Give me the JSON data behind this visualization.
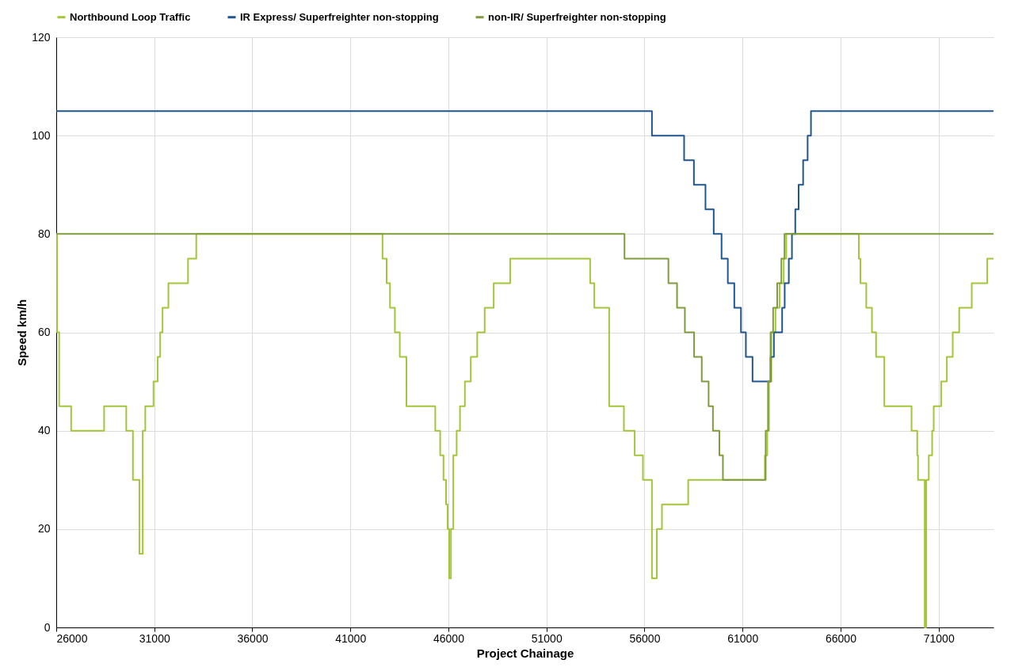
{
  "chart_data": {
    "type": "step",
    "xlabel": "Project Chainage",
    "ylabel": "Speed km/h",
    "xlim": [
      26000,
      73800
    ],
    "ylim": [
      0,
      120
    ],
    "xticks": [
      26000,
      31000,
      36000,
      41000,
      46000,
      51000,
      56000,
      61000,
      66000,
      71000
    ],
    "yticks": [
      0,
      20,
      40,
      60,
      80,
      100,
      120
    ],
    "grid": true,
    "legend": "top",
    "line_style": "solid",
    "marker": "none",
    "series": [
      {
        "name": "Northbound Loop Traffic",
        "color": "#a3c639",
        "x": [
          26000,
          26040,
          26150,
          26760,
          28440,
          29570,
          29910,
          30240,
          30410,
          30540,
          30960,
          31170,
          31300,
          31420,
          31720,
          32720,
          33140,
          42640,
          42850,
          43020,
          43270,
          43520,
          43860,
          45330,
          45580,
          45750,
          45880,
          45960,
          46040,
          46130,
          46250,
          46420,
          46590,
          46840,
          47140,
          47470,
          47850,
          48310,
          49150,
          53230,
          53440,
          54200,
          54360,
          54950,
          55500,
          55920,
          56380,
          56470,
          56630,
          56890,
          58230,
          62140,
          62260,
          62350,
          62470,
          62680,
          62890,
          63100,
          63230,
          66930,
          67010,
          67310,
          67600,
          67810,
          68230,
          69620,
          69910,
          69950,
          70290,
          70370,
          70500,
          70670,
          70750,
          71130,
          71420,
          71720,
          72050,
          72690,
          73480,
          73800
        ],
        "values": [
          80,
          60,
          45,
          40,
          45,
          40,
          30,
          15,
          40,
          45,
          50,
          55,
          60,
          65,
          70,
          75,
          80,
          75,
          70,
          65,
          60,
          55,
          45,
          40,
          35,
          30,
          25,
          20,
          10,
          20,
          35,
          40,
          45,
          50,
          55,
          60,
          65,
          70,
          75,
          70,
          65,
          45,
          45,
          40,
          35,
          30,
          10,
          10,
          20,
          25,
          30,
          35,
          40,
          50,
          60,
          65,
          70,
          75,
          80,
          75,
          70,
          65,
          60,
          55,
          45,
          40,
          35,
          30,
          0,
          30,
          35,
          40,
          45,
          50,
          55,
          60,
          65,
          70,
          75,
          75
        ]
      },
      {
        "name": "IR Express/ Superfreighter non-stopping",
        "color": "#1f5591",
        "x": [
          26000,
          56380,
          58020,
          58520,
          59110,
          59530,
          59930,
          60250,
          60580,
          60920,
          61170,
          61510,
          62430,
          62600,
          63020,
          63150,
          63360,
          63520,
          63690,
          63860,
          64090,
          64320,
          64490,
          73800
        ],
        "values": [
          105,
          100,
          95,
          90,
          85,
          80,
          75,
          70,
          65,
          60,
          55,
          50,
          55,
          60,
          65,
          70,
          75,
          80,
          85,
          90,
          95,
          100,
          105,
          105
        ]
      },
      {
        "name": "non-IR/ Superfreighter non-stopping",
        "color": "#7f9c3c",
        "x": [
          26000,
          54980,
          57220,
          57660,
          58060,
          58530,
          58920,
          59270,
          59490,
          59820,
          60000,
          62180,
          62300,
          62430,
          62560,
          62770,
          62980,
          63140,
          73800
        ],
        "values": [
          80,
          75,
          70,
          65,
          60,
          55,
          50,
          45,
          40,
          35,
          30,
          40,
          50,
          60,
          65,
          70,
          75,
          80,
          80
        ]
      }
    ]
  }
}
